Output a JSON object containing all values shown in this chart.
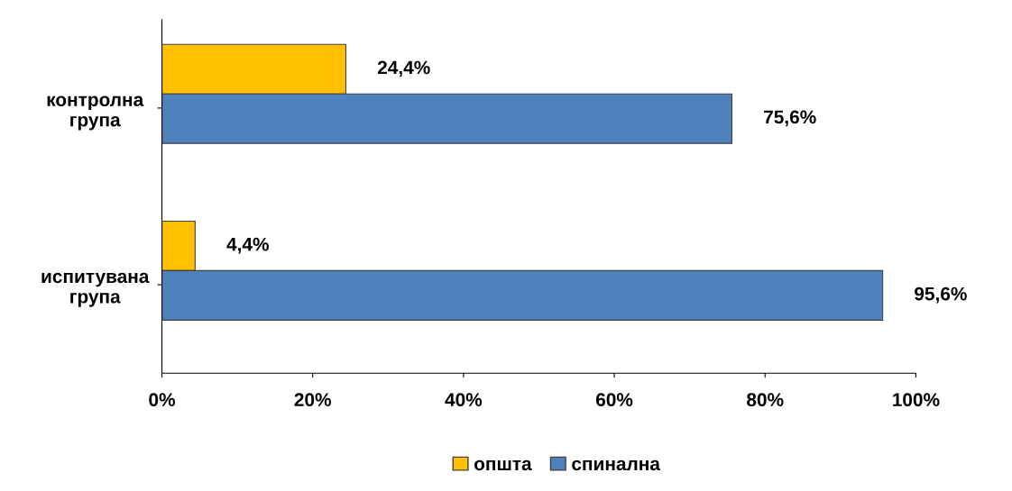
{
  "chart_data": {
    "type": "bar",
    "orientation": "horizontal",
    "categories": [
      "контролна\nгрупа",
      "испитувана\nгрупа"
    ],
    "series": [
      {
        "name": "општа",
        "color": "#ffc000",
        "values": [
          24.4,
          4.4
        ],
        "value_labels": [
          "24,4%",
          "4,4%"
        ]
      },
      {
        "name": "спинална",
        "color": "#4f81bd",
        "values": [
          75.6,
          95.6
        ],
        "value_labels": [
          "75,6%",
          "95,6%"
        ]
      }
    ],
    "xlim": [
      0,
      100
    ],
    "xticks": [
      {
        "value": 0,
        "label": "0%"
      },
      {
        "value": 20,
        "label": "20%"
      },
      {
        "value": 40,
        "label": "40%"
      },
      {
        "value": 60,
        "label": "60%"
      },
      {
        "value": 80,
        "label": "80%"
      },
      {
        "value": 100,
        "label": "100%"
      }
    ],
    "grid": false,
    "legend": "bottom"
  }
}
